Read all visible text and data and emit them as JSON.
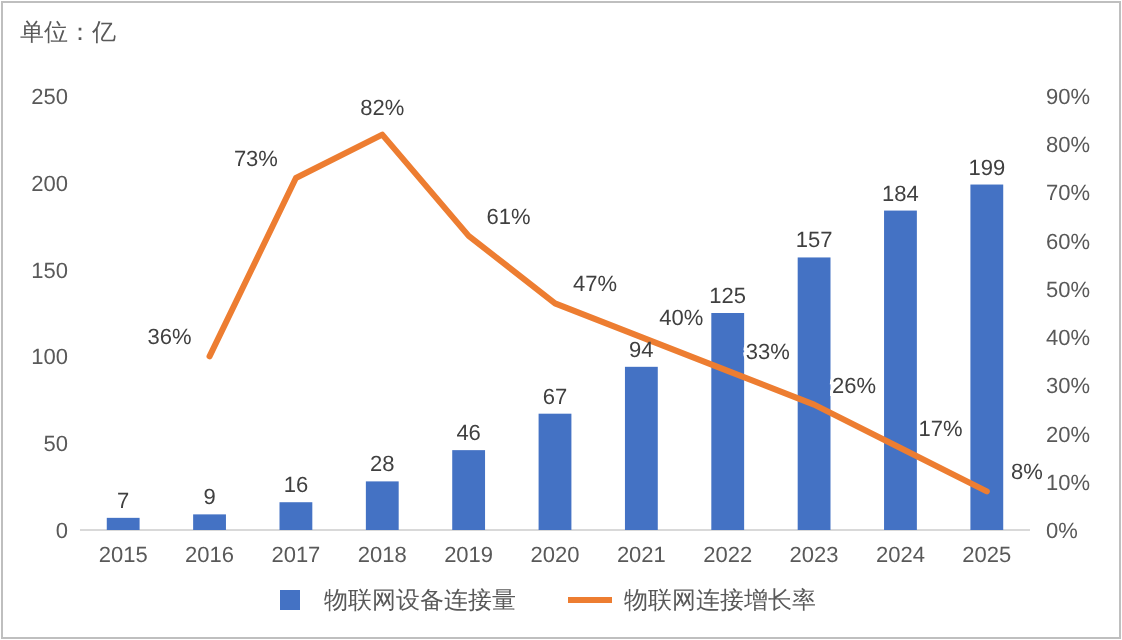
{
  "chart_data": {
    "type": "bar",
    "annotations": [
      "单位：亿"
    ],
    "categories": [
      "2015",
      "2016",
      "2017",
      "2018",
      "2019",
      "2020",
      "2021",
      "2022",
      "2023",
      "2024",
      "2025"
    ],
    "series": [
      {
        "name": "物联网设备连接量",
        "color": "#4472c4",
        "values": [
          7,
          9,
          16,
          28,
          46,
          67,
          94,
          125,
          157,
          184,
          199
        ],
        "value_labels": [
          "7",
          "9",
          "16",
          "28",
          "46",
          "67",
          "94",
          "125",
          "157",
          "184",
          "199"
        ]
      },
      {
        "name": "物联网连接增长率",
        "type": "line",
        "axis": "y2",
        "color": "#ed7d31",
        "values": [
          null,
          36,
          73,
          82,
          61,
          47,
          40,
          33,
          26,
          17,
          8
        ],
        "value_labels": [
          null,
          "36%",
          "73%",
          "82%",
          "61%",
          "47%",
          "40%",
          "33%",
          "26%",
          "17%",
          "8%"
        ]
      }
    ],
    "ylim": [
      0,
      250
    ],
    "yticks": [
      0,
      50,
      100,
      150,
      200,
      250
    ],
    "y2lim": [
      0,
      90
    ],
    "y2ticks": [
      {
        "value": 0,
        "label": "0%"
      },
      {
        "value": 10,
        "label": "10%"
      },
      {
        "value": 20,
        "label": "20%"
      },
      {
        "value": 30,
        "label": "30%"
      },
      {
        "value": 40,
        "label": "40%"
      },
      {
        "value": 50,
        "label": "50%"
      },
      {
        "value": 60,
        "label": "60%"
      },
      {
        "value": 70,
        "label": "70%"
      },
      {
        "value": 80,
        "label": "80%"
      },
      {
        "value": 90,
        "label": "90%"
      }
    ],
    "grid": false,
    "legend": "bottom",
    "marker": "none"
  }
}
